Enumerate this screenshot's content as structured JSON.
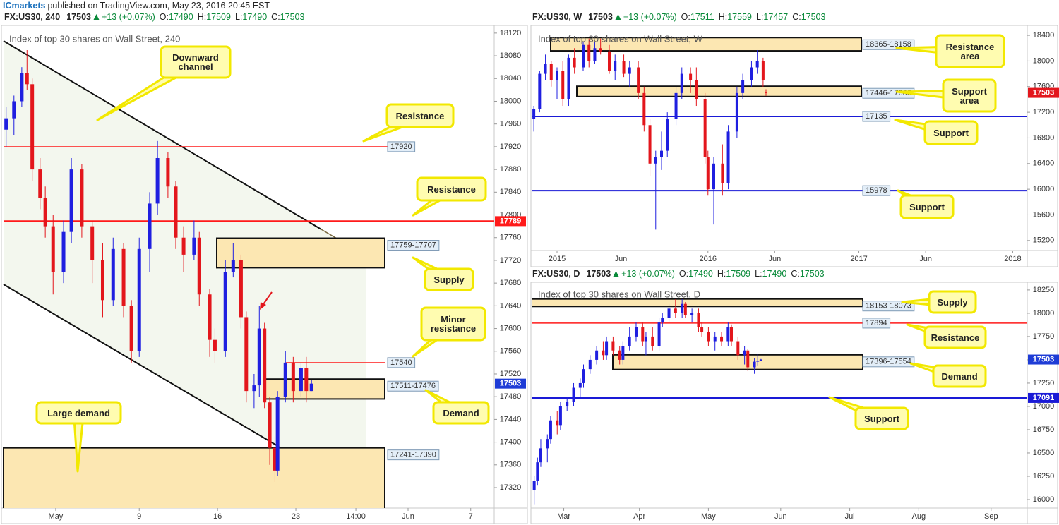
{
  "header": {
    "author": "ICmarkets",
    "published": "published on TradingView.com, May 23, 2016 20:45 EST"
  },
  "chart_data": [
    {
      "type": "candlestick",
      "symbol": "FX:US30, 240",
      "last": 17503,
      "last_color": "#1e3cd6",
      "change": "+13 (+0.07%)",
      "ohlc": [
        {
          "label": "O:",
          "value": 17490
        },
        {
          "label": "H:",
          "value": 17509
        },
        {
          "label": "L:",
          "value": 17490
        },
        {
          "label": "C:",
          "value": 17503
        }
      ],
      "title": "Index of top 30 shares on Wall Street, 240",
      "up_color": "#1f1fe0",
      "down_color": "#e3161c",
      "x": [
        1,
        4,
        7,
        9,
        11,
        14,
        16,
        19,
        23,
        26,
        30,
        34,
        38,
        42,
        46,
        49,
        52,
        56,
        59,
        63,
        66,
        69,
        73,
        75,
        79,
        81,
        85,
        88,
        91,
        93,
        96,
        98,
        100,
        102,
        104,
        105,
        108,
        111,
        114,
        116,
        118
      ],
      "open": [
        17950,
        17970,
        18000,
        18050,
        18030,
        17880,
        17830,
        17780,
        17700,
        17770,
        17880,
        17780,
        17720,
        17650,
        17740,
        17640,
        17560,
        17740,
        17820,
        17900,
        17850,
        17760,
        17730,
        17760,
        17660,
        17580,
        17560,
        17700,
        17720,
        17620,
        17490,
        17500,
        17600,
        17470,
        17390,
        17350,
        17480,
        17540,
        17490,
        17530,
        17490
      ],
      "high": [
        17990,
        18010,
        18060,
        18090,
        18040,
        17900,
        17850,
        17800,
        17790,
        17900,
        17890,
        17790,
        17750,
        17760,
        17750,
        17650,
        17760,
        17840,
        17930,
        17910,
        17860,
        17780,
        17790,
        17770,
        17670,
        17600,
        17720,
        17750,
        17730,
        17630,
        17520,
        17640,
        17610,
        17480,
        17410,
        17490,
        17560,
        17550,
        17540,
        17550,
        17509
      ],
      "low": [
        17920,
        17940,
        17990,
        18020,
        17860,
        17810,
        17760,
        17660,
        17680,
        17750,
        17760,
        17680,
        17620,
        17640,
        17620,
        17540,
        17550,
        17700,
        17800,
        17830,
        17740,
        17700,
        17720,
        17640,
        17550,
        17540,
        17550,
        17690,
        17600,
        17470,
        17460,
        17480,
        17460,
        17360,
        17330,
        17340,
        17470,
        17470,
        17480,
        17470,
        17490
      ],
      "close": [
        17970,
        18000,
        18050,
        18030,
        17880,
        17830,
        17780,
        17700,
        17770,
        17880,
        17780,
        17720,
        17650,
        17740,
        17640,
        17560,
        17740,
        17820,
        17900,
        17850,
        17760,
        17730,
        17760,
        17660,
        17580,
        17560,
        17700,
        17720,
        17620,
        17490,
        17500,
        17600,
        17470,
        17390,
        17350,
        17480,
        17540,
        17490,
        17530,
        17490,
        17503
      ],
      "xlim": [
        0,
        188
      ],
      "xticks": [
        {
          "value": 20,
          "label": "May"
        },
        {
          "value": 52,
          "label": "9"
        },
        {
          "value": 82,
          "label": "16"
        },
        {
          "value": 112,
          "label": "23"
        },
        {
          "value": 135,
          "label": "14:00"
        },
        {
          "value": 155,
          "label": "Jun"
        },
        {
          "value": 179,
          "label": "7"
        }
      ],
      "ylim": [
        17284,
        18131
      ],
      "yticks": [
        17320,
        17360,
        17400,
        17440,
        17480,
        17520,
        17560,
        17600,
        17640,
        17680,
        17720,
        17760,
        17800,
        17840,
        17880,
        17920,
        17960,
        18000,
        18040,
        18080,
        18120
      ],
      "zones": [
        {
          "label": "17759-17707",
          "low": 17707,
          "high": 17759
        },
        {
          "label": "17511-17476",
          "low": 17476,
          "high": 17511
        },
        {
          "label": "17241-17390",
          "low": 17241,
          "high": 17390
        }
      ],
      "levels": [
        {
          "value": 17920,
          "color": "#ff1a1a",
          "boxed": true,
          "tag": false
        },
        {
          "value": 17789,
          "color": "#ff1a1a",
          "boxed": false,
          "tag": true
        },
        {
          "value": 17540,
          "color": "#ff1a1a",
          "boxed": true,
          "tag": false
        }
      ],
      "callouts": [
        "Downward channel",
        "Resistance",
        "Resistance",
        "Supply",
        "Minor resistance",
        "Demand",
        "Large demand"
      ]
    },
    {
      "type": "candlestick",
      "symbol": "FX:US30, W",
      "last": 17503,
      "last_color": "#e3161c",
      "change": "+13 (+0.07%)",
      "ohlc": [
        {
          "label": "O:",
          "value": 17511
        },
        {
          "label": "H:",
          "value": 17559
        },
        {
          "label": "L:",
          "value": 17457
        },
        {
          "label": "C:",
          "value": 17503
        }
      ],
      "title": "Index of top 30 shares on Wall Street, W",
      "up_color": "#1f1fe0",
      "down_color": "#e3161c",
      "x": [
        1,
        3,
        5,
        7,
        9,
        11,
        13,
        15,
        18,
        20,
        22,
        24,
        27,
        29,
        32,
        34,
        37,
        39,
        41,
        43,
        45,
        47,
        50,
        52,
        55,
        57,
        60,
        61,
        63,
        66,
        68,
        71,
        73,
        76,
        78,
        80,
        81
      ],
      "open": [
        17100,
        17250,
        17800,
        17950,
        17700,
        17850,
        17400,
        18050,
        17900,
        18250,
        18000,
        18200,
        18150,
        17850,
        18000,
        17800,
        17900,
        17500,
        17000,
        16400,
        16500,
        16600,
        17100,
        17500,
        17800,
        17700,
        17400,
        16500,
        16000,
        16400,
        16100,
        16900,
        17500,
        17700,
        17900,
        18000,
        17511
      ],
      "high": [
        17300,
        17850,
        18100,
        18000,
        17900,
        18000,
        18100,
        18200,
        18300,
        18350,
        18300,
        18350,
        18250,
        18100,
        18100,
        18000,
        18000,
        17600,
        17100,
        16600,
        16900,
        17200,
        17600,
        17900,
        17900,
        17900,
        17500,
        16600,
        16500,
        16700,
        17000,
        17600,
        17800,
        18000,
        18170,
        18050,
        17559
      ],
      "low": [
        16900,
        17200,
        17700,
        17600,
        17400,
        17300,
        17300,
        17800,
        17850,
        17900,
        17950,
        18100,
        17800,
        17700,
        17750,
        17600,
        17400,
        16900,
        16200,
        15370,
        16300,
        16500,
        17000,
        17400,
        17500,
        17300,
        16400,
        15900,
        15450,
        15900,
        16000,
        16800,
        17400,
        17600,
        17800,
        17600,
        17457
      ],
      "close": [
        17250,
        17800,
        17950,
        17700,
        17850,
        17400,
        18050,
        17900,
        18250,
        18000,
        18200,
        18150,
        17850,
        18000,
        17800,
        17900,
        17500,
        17000,
        16400,
        16500,
        16600,
        17100,
        17500,
        17800,
        17700,
        17400,
        16500,
        16000,
        16400,
        16100,
        16900,
        17500,
        17700,
        17900,
        18000,
        17700,
        17503
      ],
      "xlim": [
        0,
        171
      ],
      "xticks": [
        {
          "value": 9,
          "label": "2015"
        },
        {
          "value": 31,
          "label": "Jun"
        },
        {
          "value": 61,
          "label": "2016"
        },
        {
          "value": 84,
          "label": "Jun"
        },
        {
          "value": 113,
          "label": "2017"
        },
        {
          "value": 136,
          "label": "Jun"
        },
        {
          "value": 166,
          "label": "2018"
        }
      ],
      "ylim": [
        15044,
        18533
      ],
      "yticks": [
        15200,
        15600,
        16000,
        16400,
        16800,
        17200,
        17600,
        18000,
        18400
      ],
      "zones": [
        {
          "label": "18365-18158",
          "low": 18158,
          "high": 18365
        },
        {
          "label": "17446-17606",
          "low": 17446,
          "high": 17606
        }
      ],
      "levels": [
        {
          "value": 17135,
          "color": "#1a1ad6",
          "boxed": true,
          "tag": false
        },
        {
          "value": 15978,
          "color": "#1a1ad6",
          "boxed": true,
          "tag": false
        }
      ],
      "callouts": [
        "Resistance area",
        "Support area",
        "Support",
        "Support"
      ]
    },
    {
      "type": "candlestick",
      "symbol": "FX:US30, D",
      "last": 17503,
      "last_color": "#1e3cd6",
      "change": "+13 (+0.07%)",
      "ohlc": [
        {
          "label": "O:",
          "value": 17490
        },
        {
          "label": "H:",
          "value": 17509
        },
        {
          "label": "L:",
          "value": 17490
        },
        {
          "label": "C:",
          "value": 17503
        }
      ],
      "title": "Index of top 30 shares on Wall Street, D",
      "up_color": "#1f1fe0",
      "down_color": "#e3161c",
      "x": [
        1,
        2,
        3,
        5,
        6,
        8,
        9,
        11,
        13,
        15,
        16,
        18,
        20,
        22,
        23,
        25,
        27,
        28,
        30,
        32,
        34,
        35,
        37,
        39,
        40,
        42,
        44,
        46,
        47,
        49,
        51,
        52,
        54,
        56,
        58,
        60,
        61,
        63,
        65,
        66,
        68,
        69,
        70
      ],
      "open": [
        16100,
        16200,
        16400,
        16550,
        16650,
        16850,
        16800,
        17000,
        17050,
        17200,
        17250,
        17400,
        17500,
        17600,
        17550,
        17700,
        17600,
        17500,
        17650,
        17750,
        17850,
        17700,
        17750,
        17650,
        17900,
        17950,
        18050,
        18000,
        18100,
        17980,
        18000,
        17850,
        17800,
        17700,
        17750,
        17700,
        17850,
        17700,
        17550,
        17600,
        17420,
        17480,
        17490
      ],
      "high": [
        16250,
        16450,
        16650,
        16700,
        16900,
        16950,
        17050,
        17100,
        17250,
        17300,
        17450,
        17550,
        17650,
        17700,
        17750,
        17750,
        17650,
        17700,
        17850,
        17900,
        17900,
        17800,
        17850,
        17950,
        18000,
        18100,
        18150,
        18150,
        18120,
        18050,
        18050,
        17900,
        17850,
        17800,
        17800,
        17900,
        17880,
        17750,
        17650,
        17620,
        17520,
        17560,
        17509
      ],
      "low": [
        15950,
        16150,
        16350,
        16400,
        16600,
        16700,
        16750,
        16950,
        17000,
        17100,
        17200,
        17350,
        17450,
        17500,
        17500,
        17550,
        17450,
        17450,
        17600,
        17700,
        17650,
        17550,
        17600,
        17600,
        17850,
        17900,
        17950,
        17950,
        17950,
        17900,
        17800,
        17750,
        17650,
        17600,
        17650,
        17650,
        17650,
        17500,
        17450,
        17380,
        17350,
        17440,
        17490
      ],
      "close": [
        16200,
        16400,
        16550,
        16650,
        16850,
        16800,
        17000,
        17050,
        17200,
        17250,
        17400,
        17500,
        17600,
        17550,
        17700,
        17600,
        17500,
        17650,
        17750,
        17850,
        17700,
        17750,
        17650,
        17900,
        17950,
        18050,
        18000,
        18100,
        17980,
        18000,
        17850,
        17800,
        17700,
        17750,
        17700,
        17850,
        17700,
        17550,
        17600,
        17420,
        17480,
        17490,
        17503
      ],
      "xlim": [
        0,
        151
      ],
      "xticks": [
        {
          "value": 10,
          "label": "Mar"
        },
        {
          "value": 33,
          "label": "Apr"
        },
        {
          "value": 54,
          "label": "May"
        },
        {
          "value": 76,
          "label": "Jun"
        },
        {
          "value": 97,
          "label": "Jul"
        },
        {
          "value": 118,
          "label": "Aug"
        },
        {
          "value": 140,
          "label": "Sep"
        }
      ],
      "ylim": [
        15909,
        18325
      ],
      "yticks": [
        16000,
        16250,
        16500,
        16750,
        17000,
        17250,
        17500,
        17750,
        18000,
        18250
      ],
      "zones": [
        {
          "label": "18153-18073",
          "low": 18073,
          "high": 18153
        },
        {
          "label": "17396-17554",
          "low": 17396,
          "high": 17554
        }
      ],
      "levels": [
        {
          "value": 17894,
          "color": "#ff1a1a",
          "boxed": true,
          "tag": false
        },
        {
          "value": 17091,
          "color": "#1a1ad6",
          "boxed": false,
          "tag": true
        }
      ],
      "callouts": [
        "Supply",
        "Resistance",
        "Demand",
        "Support"
      ]
    }
  ]
}
